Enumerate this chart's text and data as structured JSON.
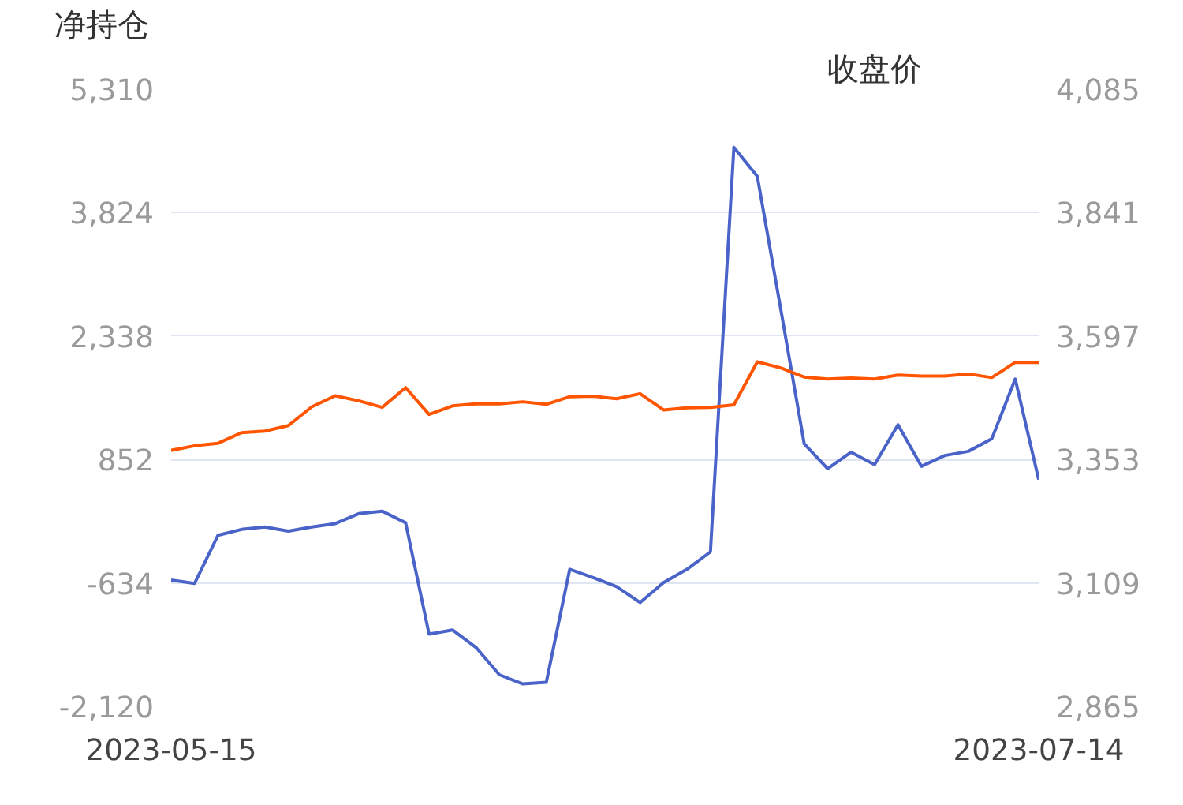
{
  "chart_data": {
    "type": "line",
    "ylabel": "净持仓",
    "y2label": "收盘价",
    "categories": [
      "2023-05-15",
      null,
      null,
      null,
      null,
      null,
      null,
      null,
      null,
      null,
      null,
      null,
      null,
      null,
      null,
      null,
      null,
      null,
      null,
      null,
      null,
      null,
      null,
      null,
      null,
      null,
      null,
      null,
      null,
      null,
      null,
      null,
      null,
      null,
      null,
      null,
      null,
      "2023-07-14"
    ],
    "series": [
      {
        "color": "#4a63c8",
        "values": [
          -600,
          -640,
          -60,
          10,
          40,
          -10,
          40,
          80,
          200,
          230,
          90,
          -1250,
          -1200,
          -1410,
          -1740,
          -1850,
          -1830,
          -470,
          -570,
          -680,
          -870,
          -630,
          -470,
          -260,
          4610,
          4260,
          2660,
          1040,
          740,
          940,
          790,
          1270,
          770,
          900,
          950,
          1100,
          1820,
          610
        ]
      },
      {
        "color": "#ff5500",
        "axis": "y2",
        "values": [
          3371,
          3380,
          3385,
          3406,
          3409,
          3420,
          3457,
          3479,
          3469,
          3456,
          3495,
          3442,
          3459,
          3463,
          3463,
          3467,
          3462,
          3477,
          3478,
          3473,
          3483,
          3451,
          3455,
          3456,
          3461,
          3546,
          3534,
          3516,
          3512,
          3514,
          3512,
          3520,
          3518,
          3518,
          3522,
          3515,
          3545,
          3545
        ]
      }
    ],
    "ylim": [
      -2120,
      5310
    ],
    "yticks": [
      {
        "value": -2120,
        "label": "-2,120"
      },
      {
        "value": -634,
        "label": "-634"
      },
      {
        "value": 852,
        "label": "852"
      },
      {
        "value": 2338,
        "label": "2,338"
      },
      {
        "value": 3824,
        "label": "3,824"
      },
      {
        "value": 5310,
        "label": "5,310"
      }
    ],
    "y2lim": [
      2865,
      4085
    ],
    "y2ticks": [
      {
        "value": 2865,
        "label": "2,865"
      },
      {
        "value": 3109,
        "label": "3,109"
      },
      {
        "value": 3353,
        "label": "3,353"
      },
      {
        "value": 3597,
        "label": "3,597"
      },
      {
        "value": 3841,
        "label": "3,841"
      },
      {
        "value": 4085,
        "label": "4,085"
      }
    ],
    "grid": "y",
    "marker": "none",
    "line_style": "solid"
  }
}
